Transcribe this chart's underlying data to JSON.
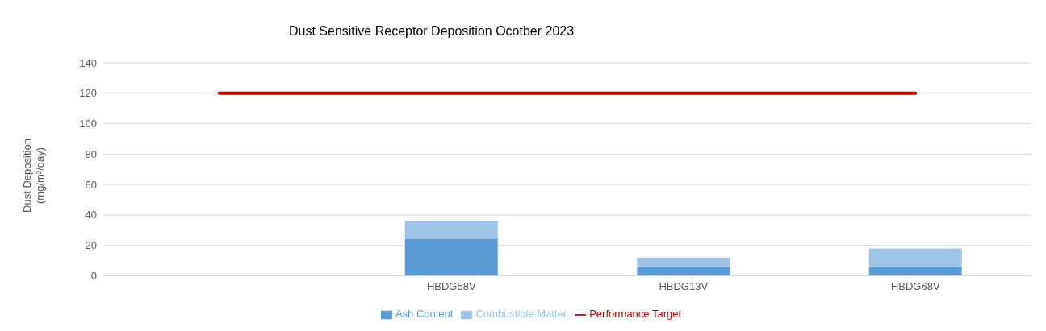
{
  "chart_data": {
    "type": "bar",
    "title": "Dust Sensitive Receptor Deposition Ocotber 2023",
    "ylabel": "Dust Deposition (mg/m²/day)",
    "categories": [
      null,
      "HBDG58V",
      "HBDG13V",
      "HBDG68V"
    ],
    "stacked": true,
    "series": [
      {
        "name": "Ash Content",
        "color": "#5b9bd5",
        "values": [
          null,
          24,
          5.5,
          5.5
        ]
      },
      {
        "name": "Combustible Matter",
        "color": "#9dc3e6",
        "values": [
          null,
          12,
          6.5,
          12.5
        ]
      },
      {
        "name": "Performance Target",
        "type": "line",
        "color": "#c00000",
        "values": [
          120,
          120,
          120,
          120
        ]
      }
    ],
    "ylim": [
      0,
      140
    ],
    "yticks": [
      0,
      20,
      40,
      60,
      80,
      100,
      120,
      140
    ],
    "grid": "y",
    "legend": "bottom",
    "marker": "none"
  }
}
